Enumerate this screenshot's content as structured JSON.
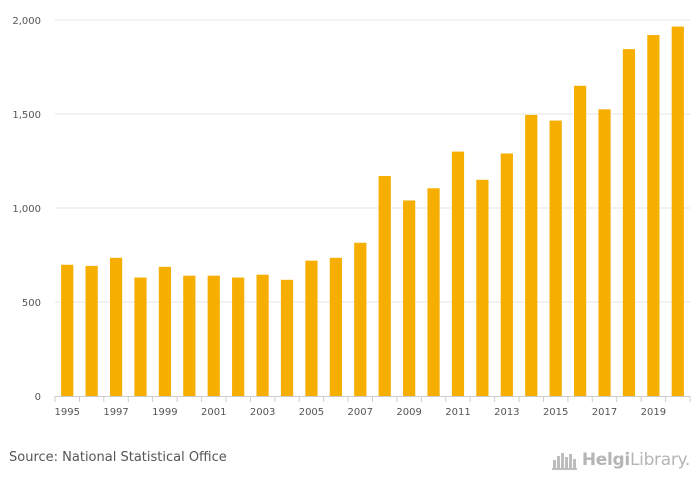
{
  "chart_data": {
    "type": "bar",
    "title": "",
    "xlabel": "",
    "ylabel": "",
    "categories": [
      "1995",
      "1996",
      "1997",
      "1998",
      "1999",
      "2000",
      "2001",
      "2002",
      "2003",
      "2004",
      "2005",
      "2006",
      "2007",
      "2008",
      "2009",
      "2010",
      "2011",
      "2012",
      "2013",
      "2014",
      "2015",
      "2016",
      "2017",
      "2018",
      "2019",
      "2020"
    ],
    "values": [
      698,
      692,
      735,
      630,
      687,
      640,
      640,
      630,
      645,
      618,
      720,
      735,
      815,
      1170,
      1040,
      1105,
      1300,
      1150,
      1290,
      1495,
      1465,
      1650,
      1525,
      1845,
      1920,
      1965
    ],
    "x_tick_labels": [
      "1995",
      "1997",
      "1999",
      "2001",
      "2003",
      "2005",
      "2007",
      "2009",
      "2011",
      "2013",
      "2015",
      "2017",
      "2019"
    ],
    "y_ticks": [
      0,
      500,
      1000,
      1500,
      2000
    ],
    "y_tick_labels": [
      "0",
      "500",
      "1,000",
      "1,500",
      "2,000"
    ],
    "ylim": [
      0,
      2000
    ],
    "grid": true,
    "bar_color": "#f6ae00",
    "grid_color": "#e6e6e6",
    "axis_color": "#cccccc"
  },
  "footer": {
    "source": "Source: National Statistical Office",
    "brand_main": "Helgi",
    "brand_suffix": "Library."
  }
}
